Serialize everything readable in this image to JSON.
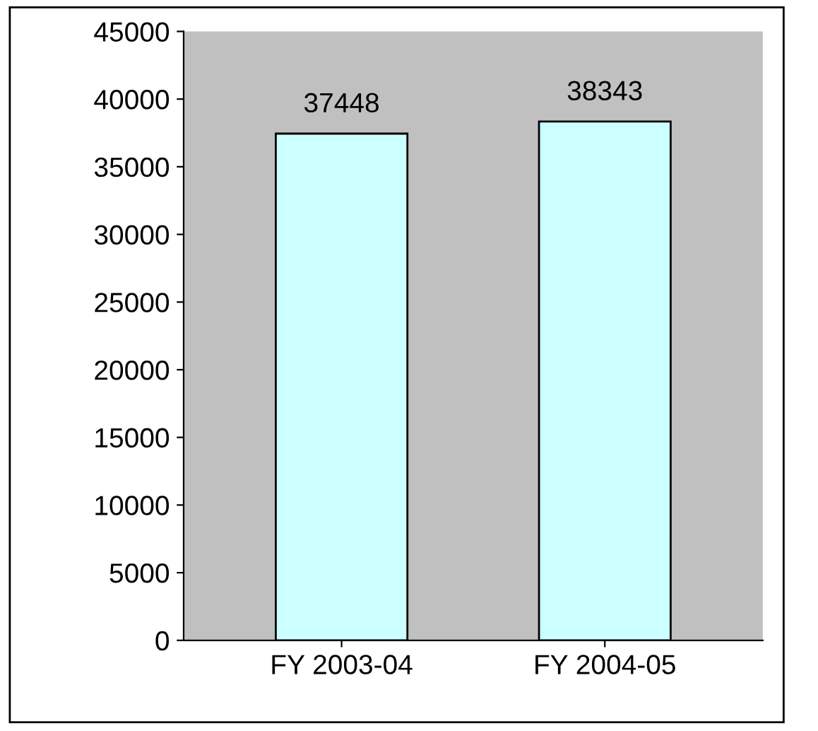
{
  "chart_data": {
    "type": "bar",
    "categories": [
      "FY 2003-04",
      "FY 2004-05"
    ],
    "values": [
      37448,
      38343
    ],
    "color": "#ccffff",
    "ylim": [
      0,
      45000
    ],
    "yticks": [
      0,
      5000,
      10000,
      15000,
      20000,
      25000,
      30000,
      35000,
      40000,
      45000
    ],
    "grid": false,
    "data_labels": true
  }
}
